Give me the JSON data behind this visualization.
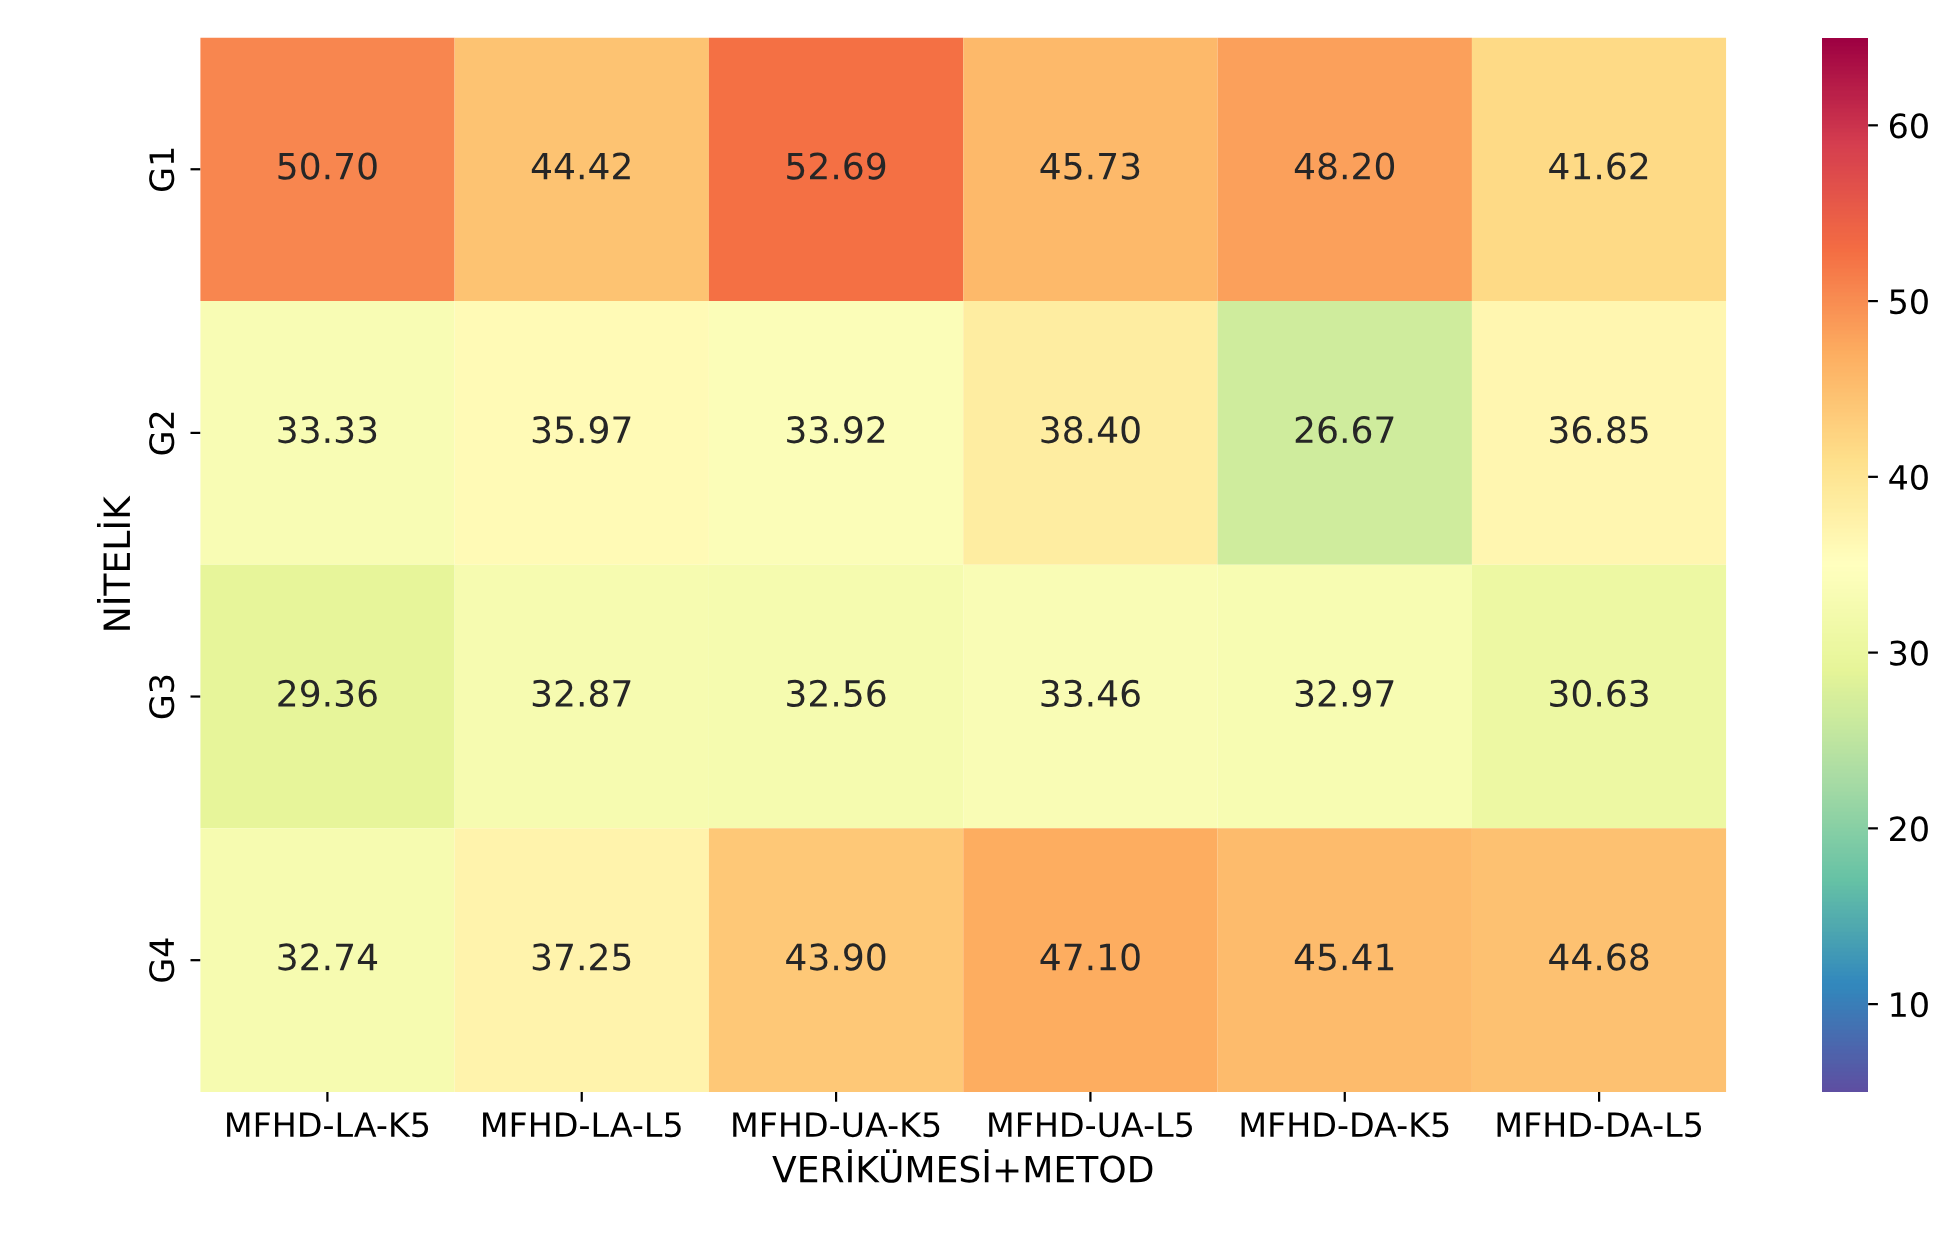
{
  "chart_data": {
    "type": "heatmap",
    "xlabel": "VERİKÜMESİ+METOD",
    "ylabel": "NİTELİK",
    "categories": [
      "MFHD-LA-K5",
      "MFHD-LA-L5",
      "MFHD-UA-K5",
      "MFHD-UA-L5",
      "MFHD-DA-K5",
      "MFHD-DA-L5"
    ],
    "y_categories": [
      "G1",
      "G2",
      "G3",
      "G4"
    ],
    "cells": [
      [
        50.7,
        44.42,
        52.69,
        45.73,
        48.2,
        41.62
      ],
      [
        33.33,
        35.97,
        33.92,
        38.4,
        26.67,
        36.85
      ],
      [
        29.36,
        32.87,
        32.56,
        33.46,
        32.97,
        30.63
      ],
      [
        32.74,
        37.25,
        43.9,
        47.1,
        45.41,
        44.68
      ]
    ],
    "cell_labels": [
      [
        "50.70",
        "44.42",
        "52.69",
        "45.73",
        "48.20",
        "41.62"
      ],
      [
        "33.33",
        "35.97",
        "33.92",
        "38.40",
        "26.67",
        "36.85"
      ],
      [
        "29.36",
        "32.87",
        "32.56",
        "33.46",
        "32.97",
        "30.63"
      ],
      [
        "32.74",
        "37.25",
        "43.90",
        "47.10",
        "45.41",
        "44.68"
      ]
    ],
    "clim": [
      5,
      65
    ],
    "cticks": [
      10,
      20,
      30,
      40,
      50,
      60
    ]
  }
}
